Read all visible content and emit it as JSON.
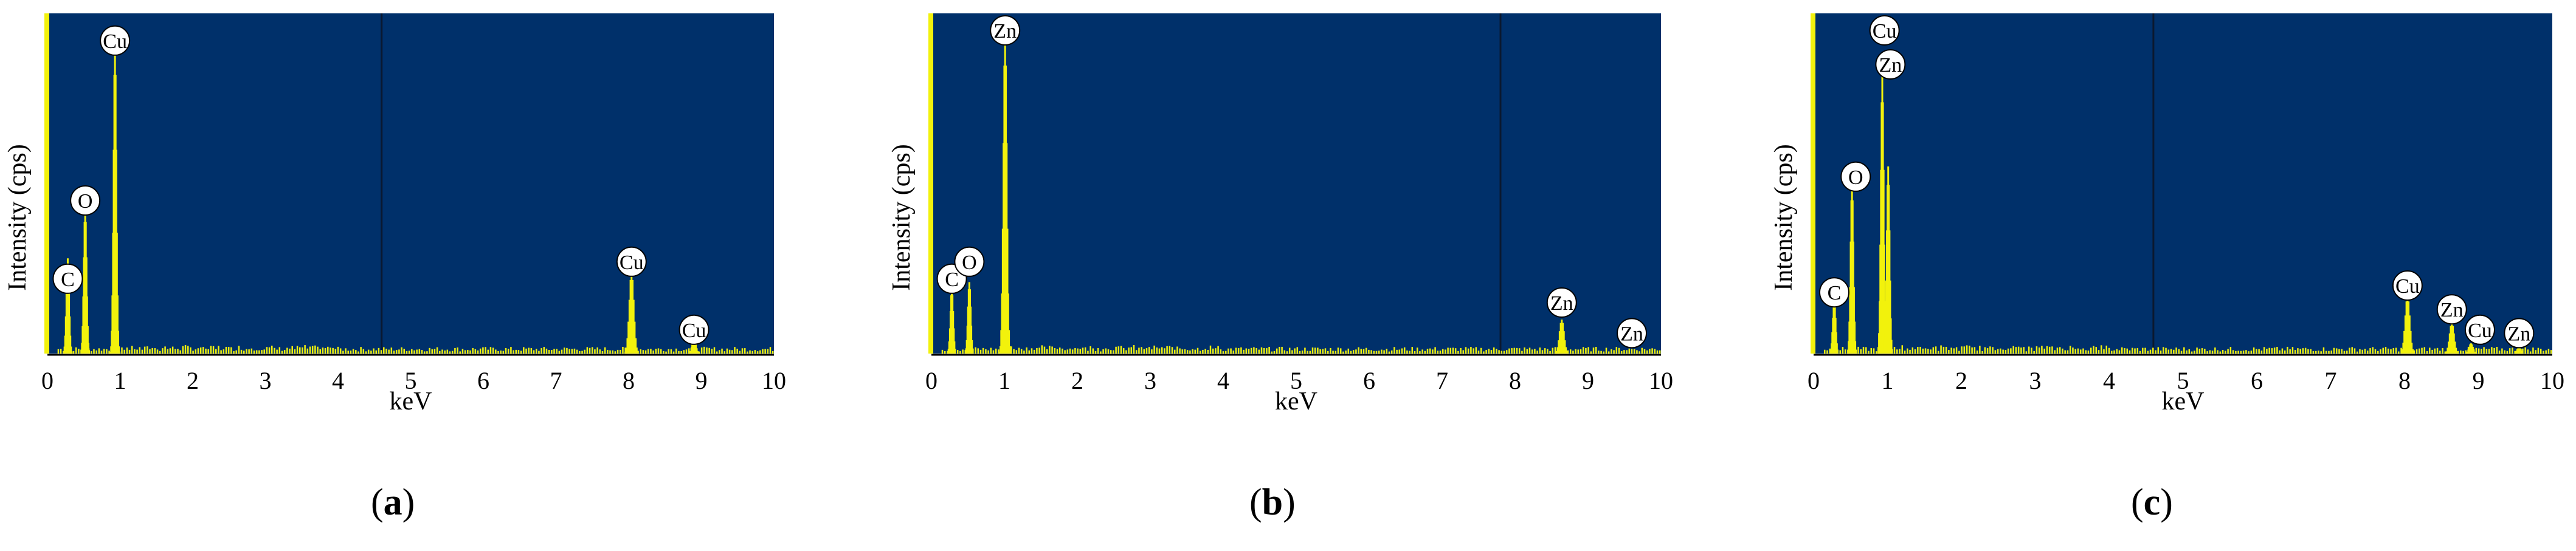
{
  "chart_data": [
    {
      "panel": "a",
      "type": "bar",
      "xlabel": "keV",
      "ylabel": "Intensity (cps)",
      "xlim": [
        0,
        10
      ],
      "xticks": [
        "0",
        "1",
        "2",
        "3",
        "4",
        "5",
        "6",
        "7",
        "8",
        "9",
        "10"
      ],
      "ylim": [
        0,
        100
      ],
      "colors": {
        "plot_bg": "#00306a",
        "spectrum": "#f2f20c",
        "axis": "#f2f20c"
      },
      "peaks": [
        {
          "label": "C",
          "x": 0.28,
          "y": 28,
          "width": 0.05
        },
        {
          "label": "O",
          "x": 0.52,
          "y": 43,
          "width": 0.05
        },
        {
          "label": "Cu",
          "x": 0.93,
          "y": 91,
          "width": 0.05
        },
        {
          "label": "Cu",
          "x": 8.04,
          "y": 24,
          "width": 0.08
        },
        {
          "label": "Cu",
          "x": 8.9,
          "y": 4,
          "width": 0.07
        }
      ],
      "annotations": [
        {
          "text": "C",
          "x": 0.28,
          "y": 22
        },
        {
          "text": "O",
          "x": 0.52,
          "y": 45
        },
        {
          "text": "Cu",
          "x": 0.93,
          "y": 92
        },
        {
          "text": "Cu",
          "x": 8.04,
          "y": 27
        },
        {
          "text": "Cu",
          "x": 8.9,
          "y": 7
        }
      ],
      "caption": {
        "open": "(",
        "letter": "a",
        "close": ")"
      }
    },
    {
      "panel": "b",
      "type": "bar",
      "xlabel": "keV",
      "ylabel": "Intensity (cps)",
      "xlim": [
        0,
        10
      ],
      "xticks": [
        "0",
        "1",
        "2",
        "3",
        "4",
        "5",
        "6",
        "7",
        "8",
        "9",
        "10"
      ],
      "ylim": [
        0,
        100
      ],
      "colors": {
        "plot_bg": "#00306a",
        "spectrum": "#f2f20c",
        "axis": "#f2f20c"
      },
      "peaks": [
        {
          "label": "C",
          "x": 0.28,
          "y": 19,
          "width": 0.05
        },
        {
          "label": "O",
          "x": 0.52,
          "y": 21,
          "width": 0.05
        },
        {
          "label": "Zn",
          "x": 1.01,
          "y": 94,
          "width": 0.06
        },
        {
          "label": "Zn",
          "x": 8.64,
          "y": 10,
          "width": 0.08
        }
      ],
      "annotations": [
        {
          "text": "C",
          "x": 0.28,
          "y": 22
        },
        {
          "text": "O",
          "x": 0.52,
          "y": 27
        },
        {
          "text": "Zn",
          "x": 1.01,
          "y": 95
        },
        {
          "text": "Zn",
          "x": 8.64,
          "y": 15
        },
        {
          "text": "Zn",
          "x": 9.6,
          "y": 6
        }
      ],
      "caption": {
        "open": "(",
        "letter": "b",
        "close": ")"
      }
    },
    {
      "panel": "c",
      "type": "bar",
      "xlabel": "keV",
      "ylabel": "Intensity (cps)",
      "xlim": [
        0,
        10
      ],
      "xticks": [
        "0",
        "1",
        "2",
        "3",
        "4",
        "5",
        "6",
        "7",
        "8",
        "9",
        "10"
      ],
      "ylim": [
        0,
        100
      ],
      "colors": {
        "plot_bg": "#00306a",
        "spectrum": "#f2f20c",
        "axis": "#f2f20c"
      },
      "peaks": [
        {
          "label": "C",
          "x": 0.28,
          "y": 16,
          "width": 0.05
        },
        {
          "label": "O",
          "x": 0.52,
          "y": 50,
          "width": 0.05
        },
        {
          "label": "Cu",
          "x": 0.93,
          "y": 82,
          "width": 0.05
        },
        {
          "label": "Zn",
          "x": 1.01,
          "y": 55,
          "width": 0.05
        },
        {
          "label": "Cu",
          "x": 8.04,
          "y": 17,
          "width": 0.08
        },
        {
          "label": "Zn",
          "x": 8.64,
          "y": 9,
          "width": 0.08
        },
        {
          "label": "Cu",
          "x": 8.9,
          "y": 3,
          "width": 0.07
        },
        {
          "label": "Zn",
          "x": 9.55,
          "y": 2,
          "width": 0.07
        }
      ],
      "annotations": [
        {
          "text": "C",
          "x": 0.28,
          "y": 18
        },
        {
          "text": "O",
          "x": 0.57,
          "y": 52
        },
        {
          "text": "Cu",
          "x": 0.96,
          "y": 95
        },
        {
          "text": "Zn",
          "x": 1.04,
          "y": 85
        },
        {
          "text": "Cu",
          "x": 8.04,
          "y": 20
        },
        {
          "text": "Zn",
          "x": 8.64,
          "y": 13
        },
        {
          "text": "Cu",
          "x": 9.02,
          "y": 7
        },
        {
          "text": "Zn",
          "x": 9.55,
          "y": 6
        }
      ],
      "caption": {
        "open": "(",
        "letter": "c",
        "close": ")"
      }
    }
  ]
}
